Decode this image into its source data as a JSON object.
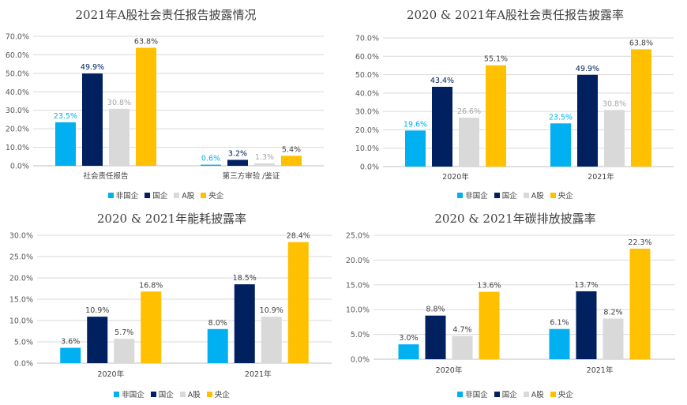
{
  "chart_data": [
    {
      "type": "bar",
      "title": "2021年A股社会责任报告披露情况",
      "categories": [
        "社会责任报告",
        "第三方审验 /鉴证"
      ],
      "yticks": [
        "0.0%",
        "10.0%",
        "20.0%",
        "30.0%",
        "40.0%",
        "50.0%",
        "60.0%",
        "70.0%"
      ],
      "ylim": [
        0,
        70
      ],
      "series": [
        {
          "name": "非国企",
          "values": [
            23.5,
            0.6
          ],
          "labels": [
            "23.5%",
            "0.6%"
          ],
          "color": "#00B0F0",
          "label_color": "#00B0F0"
        },
        {
          "name": "国企",
          "values": [
            49.9,
            3.2
          ],
          "labels": [
            "49.9%",
            "3.2%"
          ],
          "color": "#002060",
          "label_color": "#002060"
        },
        {
          "name": "A股",
          "values": [
            30.8,
            1.3
          ],
          "labels": [
            "30.8%",
            "1.3%"
          ],
          "color": "#D9D9D9",
          "label_color": "#A6A6A6"
        },
        {
          "name": "央企",
          "values": [
            63.8,
            5.4
          ],
          "labels": [
            "63.8%",
            "5.4%"
          ],
          "color": "#FFC000",
          "label_color": "#404040"
        }
      ],
      "grid": true,
      "legend": "bottom"
    },
    {
      "type": "bar",
      "title": "2020 & 2021年A股社会责任报告披露率",
      "categories": [
        "2020年",
        "2021年"
      ],
      "yticks": [
        "0.0%",
        "10.0%",
        "20.0%",
        "30.0%",
        "40.0%",
        "50.0%",
        "60.0%",
        "70.0%"
      ],
      "ylim": [
        0,
        70
      ],
      "series": [
        {
          "name": "非国企",
          "values": [
            19.6,
            23.5
          ],
          "labels": [
            "19.6%",
            "23.5%"
          ],
          "color": "#00B0F0",
          "label_color": "#00B0F0"
        },
        {
          "name": "国企",
          "values": [
            43.4,
            49.9
          ],
          "labels": [
            "43.4%",
            "49.9%"
          ],
          "color": "#002060",
          "label_color": "#002060"
        },
        {
          "name": "A股",
          "values": [
            26.6,
            30.8
          ],
          "labels": [
            "26.6%",
            "30.8%"
          ],
          "color": "#D9D9D9",
          "label_color": "#A6A6A6"
        },
        {
          "name": "央企",
          "values": [
            55.1,
            63.8
          ],
          "labels": [
            "55.1%",
            "63.8%"
          ],
          "color": "#FFC000",
          "label_color": "#404040"
        }
      ],
      "grid": true,
      "legend": "bottom"
    },
    {
      "type": "bar",
      "title": "2020 & 2021年能耗披露率",
      "categories": [
        "2020年",
        "2021年"
      ],
      "yticks": [
        "0.0%",
        "5.0%",
        "10.0%",
        "15.0%",
        "20.0%",
        "25.0%",
        "30.0%"
      ],
      "ylim": [
        0,
        30
      ],
      "series": [
        {
          "name": "非国企",
          "values": [
            3.6,
            8.0
          ],
          "labels": [
            "3.6%",
            "8.0%"
          ],
          "color": "#00B0F0",
          "label_color": "#404040"
        },
        {
          "name": "国企",
          "values": [
            10.9,
            18.5
          ],
          "labels": [
            "10.9%",
            "18.5%"
          ],
          "color": "#002060",
          "label_color": "#404040"
        },
        {
          "name": "A股",
          "values": [
            5.7,
            10.9
          ],
          "labels": [
            "5.7%",
            "10.9%"
          ],
          "color": "#D9D9D9",
          "label_color": "#404040"
        },
        {
          "name": "央企",
          "values": [
            16.8,
            28.4
          ],
          "labels": [
            "16.8%",
            "28.4%"
          ],
          "color": "#FFC000",
          "label_color": "#404040"
        }
      ],
      "grid": true,
      "legend": "bottom"
    },
    {
      "type": "bar",
      "title": "2020 & 2021年碳排放披露率",
      "categories": [
        "2020年",
        "2021年"
      ],
      "yticks": [
        "0.0%",
        "5.0%",
        "10.0%",
        "15.0%",
        "20.0%",
        "25.0%"
      ],
      "ylim": [
        0,
        25
      ],
      "series": [
        {
          "name": "非国企",
          "values": [
            3.0,
            6.1
          ],
          "labels": [
            "3.0%",
            "6.1%"
          ],
          "color": "#00B0F0",
          "label_color": "#404040"
        },
        {
          "name": "国企",
          "values": [
            8.8,
            13.7
          ],
          "labels": [
            "8.8%",
            "13.7%"
          ],
          "color": "#002060",
          "label_color": "#404040"
        },
        {
          "name": "A股",
          "values": [
            4.7,
            8.2
          ],
          "labels": [
            "4.7%",
            "8.2%"
          ],
          "color": "#D9D9D9",
          "label_color": "#404040"
        },
        {
          "name": "央企",
          "values": [
            13.6,
            22.3
          ],
          "labels": [
            "13.6%",
            "22.3%"
          ],
          "color": "#FFC000",
          "label_color": "#404040"
        }
      ],
      "grid": true,
      "legend": "bottom"
    }
  ]
}
